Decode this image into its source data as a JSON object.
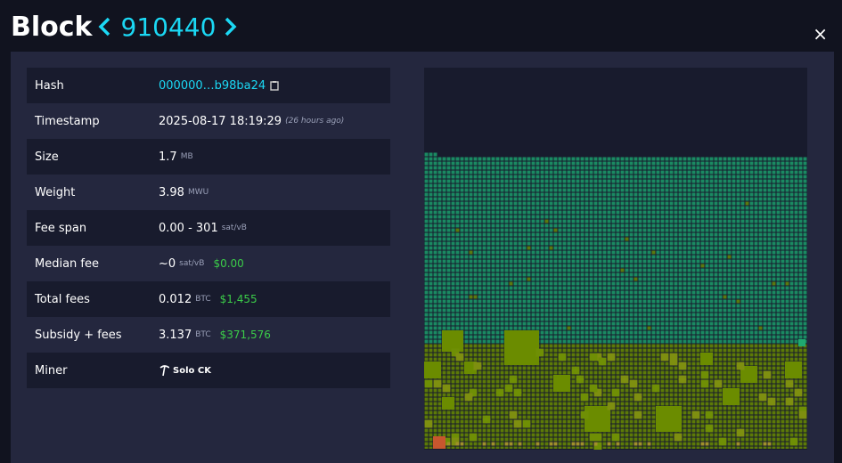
{
  "header": {
    "title": "Block",
    "height": "910440",
    "close": "×"
  },
  "details": {
    "rows": [
      {
        "label": "Hash",
        "value": "000000…b98ba24"
      },
      {
        "label": "Timestamp",
        "value": "2025-08-17 18:19:29",
        "note": "(26 hours ago)"
      },
      {
        "label": "Size",
        "value": "1.7",
        "unit": "MB"
      },
      {
        "label": "Weight",
        "value": "3.98",
        "unit": "MWU"
      },
      {
        "label": "Fee span",
        "value": "0.00 - 301",
        "unit": "sat/vB"
      },
      {
        "label": "Median fee",
        "value": "~0",
        "unit": "sat/vB",
        "fiat": "$0.00"
      },
      {
        "label": "Total fees",
        "value": "0.012",
        "unit": "BTC",
        "fiat": "$1,455"
      },
      {
        "label": "Subsidy + fees",
        "value": "3.137",
        "unit": "BTC",
        "fiat": "$371,576"
      },
      {
        "label": "Miner",
        "value": "Solo CK"
      }
    ]
  }
}
